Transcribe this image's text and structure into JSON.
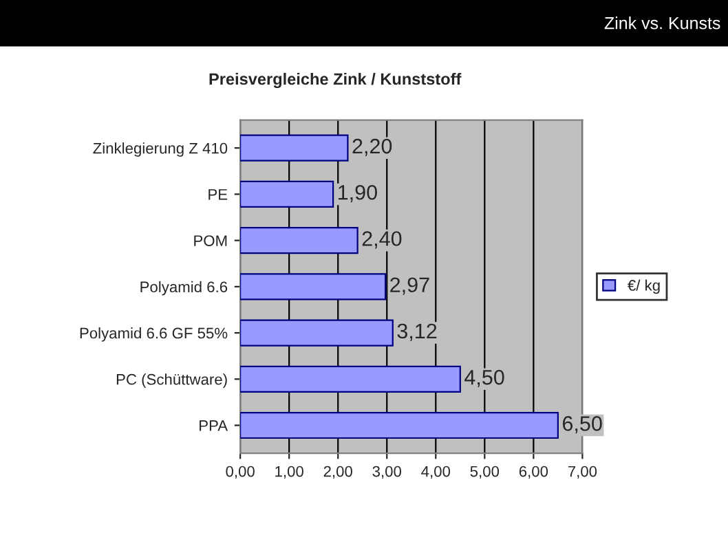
{
  "chart_data": {
    "type": "bar",
    "orientation": "horizontal",
    "title": "Preisvergleiche Zink / Kunststoff",
    "annotations": [
      "Zink vs. Kunsts"
    ],
    "categories": [
      "Zinklegierung Z 410",
      "PE",
      "POM",
      "Polyamid 6.6",
      "Polyamid 6.6 GF 55%",
      "PC (Schüttware)",
      "PPA"
    ],
    "series": [
      {
        "name": "€/ kg",
        "color": "#9999ff",
        "values": [
          2.2,
          1.9,
          2.4,
          2.97,
          3.12,
          4.5,
          6.5
        ]
      }
    ],
    "value_labels": [
      "2,20",
      "1,90",
      "2,40",
      "2,97",
      "3,12",
      "4,50",
      "6,50"
    ],
    "xlim": [
      0,
      7
    ],
    "xticks": [
      {
        "value": 0,
        "label": "0,00"
      },
      {
        "value": 1,
        "label": "1,00"
      },
      {
        "value": 2,
        "label": "2,00"
      },
      {
        "value": 3,
        "label": "3,00"
      },
      {
        "value": 4,
        "label": "4,00"
      },
      {
        "value": 5,
        "label": "5,00"
      },
      {
        "value": 6,
        "label": "6,00"
      },
      {
        "value": 7,
        "label": "7,00"
      }
    ],
    "grid": "x",
    "legend": "right"
  }
}
